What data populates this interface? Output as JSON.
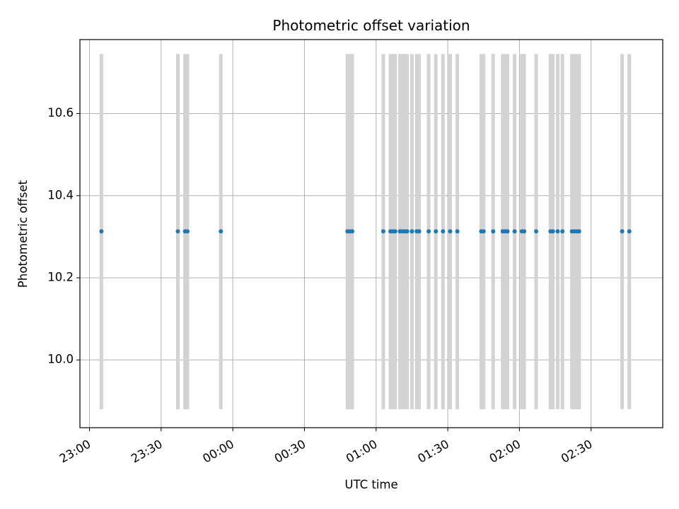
{
  "chart_data": {
    "type": "scatter",
    "title": "Photometric offset variation",
    "xlabel": "UTC time",
    "ylabel": "Photometric offset",
    "xlim": [
      "22:56",
      "03:00"
    ],
    "ylim": [
      9.835,
      10.78
    ],
    "grid": true,
    "x_ticks": [
      "23:00",
      "23:30",
      "00:00",
      "00:30",
      "01:00",
      "01:30",
      "02:00",
      "02:30"
    ],
    "y_ticks": [
      "10.0",
      "10.2",
      "10.4",
      "10.6"
    ],
    "x_tick_values": [
      0,
      30,
      60,
      90,
      120,
      150,
      180,
      210
    ],
    "y_tick_values": [
      10.0,
      10.2,
      10.4,
      10.6
    ],
    "error_range": [
      9.88,
      10.745
    ],
    "colors": {
      "points": "#1f77b4",
      "error_bars": "#d3d3d3",
      "grid": "#b0b0b0"
    },
    "series": [
      {
        "x_time": [
          "23:05",
          "23:37",
          "23:40",
          "23:41",
          "23:55",
          "00:48",
          "00:49",
          "00:50",
          "01:03",
          "01:06",
          "01:07",
          "01:08",
          "01:10",
          "01:11",
          "01:12",
          "01:13",
          "01:15",
          "01:17",
          "01:18",
          "01:22",
          "01:25",
          "01:28",
          "01:31",
          "01:34",
          "01:44",
          "01:45",
          "01:49",
          "01:53",
          "01:54",
          "01:55",
          "01:58",
          "02:01",
          "02:02",
          "02:07",
          "02:13",
          "02:14",
          "02:16",
          "02:18",
          "02:22",
          "02:23",
          "02:24",
          "02:25",
          "02:43",
          "02:46"
        ],
        "x_minutes": [
          5,
          37,
          40,
          41,
          55,
          108,
          109,
          110,
          123,
          126,
          127,
          128,
          130,
          131,
          132,
          133,
          135,
          137,
          138,
          142,
          145,
          148,
          151,
          154,
          164,
          165,
          169,
          173,
          174,
          175,
          178,
          181,
          182,
          187,
          193,
          194,
          196,
          198,
          202,
          203,
          204,
          205,
          223,
          226
        ],
        "values": [
          10.313,
          10.313,
          10.313,
          10.313,
          10.313,
          10.313,
          10.313,
          10.313,
          10.313,
          10.313,
          10.313,
          10.313,
          10.313,
          10.313,
          10.313,
          10.313,
          10.313,
          10.313,
          10.313,
          10.313,
          10.313,
          10.313,
          10.313,
          10.313,
          10.313,
          10.313,
          10.313,
          10.313,
          10.313,
          10.313,
          10.313,
          10.313,
          10.313,
          10.313,
          10.313,
          10.313,
          10.313,
          10.313,
          10.313,
          10.313,
          10.313,
          10.313,
          10.313,
          10.313
        ]
      }
    ]
  }
}
